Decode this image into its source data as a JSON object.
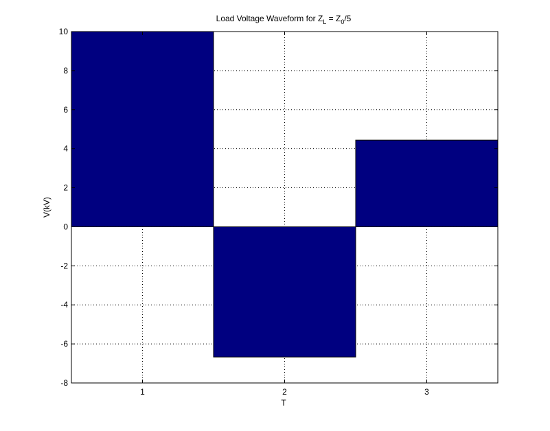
{
  "chart_data": {
    "type": "bar",
    "title": {
      "main": "Load Voltage Waveform for Z",
      "sub1": "L",
      "mid": " = Z",
      "sub2": "0",
      "tail": "/5"
    },
    "xlabel": "T",
    "ylabel": "V(kV)",
    "categories": [
      "1",
      "2",
      "3"
    ],
    "x": [
      1,
      2,
      3
    ],
    "values": [
      10,
      -6.67,
      4.44
    ],
    "xlim": [
      0.5,
      3.5
    ],
    "ylim": [
      -8,
      10
    ],
    "yticks": [
      -8,
      -6,
      -4,
      -2,
      0,
      2,
      4,
      6,
      8,
      10
    ],
    "xticks": [
      1,
      2,
      3
    ],
    "bar_width": 1,
    "grid": true,
    "colors": {
      "bar": "#000080",
      "axes": "#000000",
      "grid": "#000000",
      "background": "#ffffff"
    }
  }
}
